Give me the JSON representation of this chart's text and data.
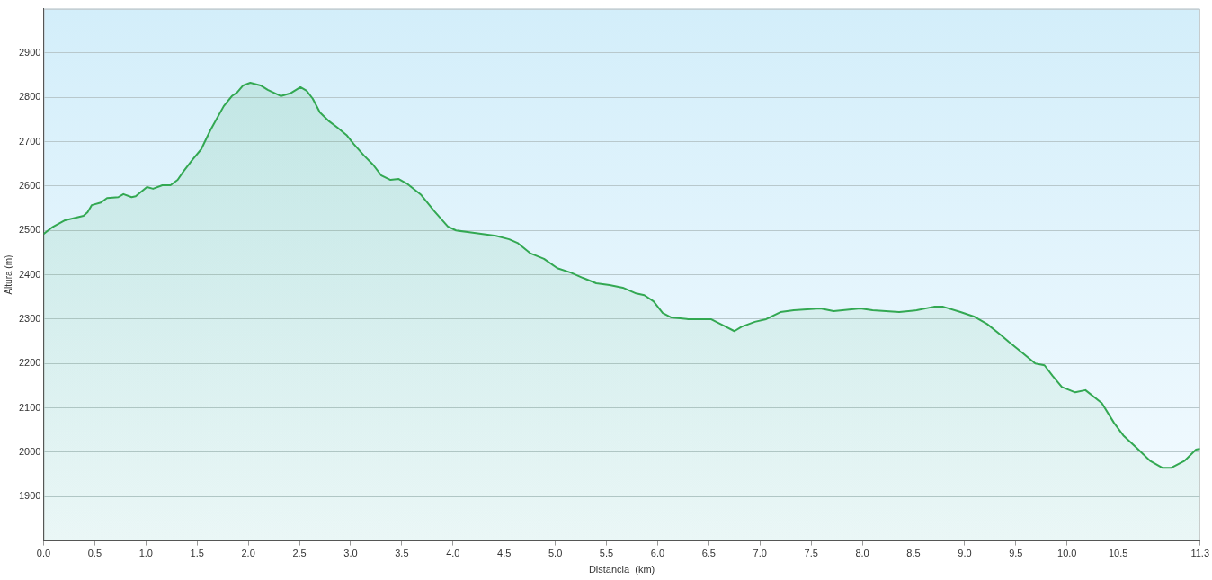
{
  "chart_data": {
    "type": "area",
    "xlabel": "Distancia  (km)",
    "ylabel": "Altura (m)",
    "xlim": [
      0,
      11.3
    ],
    "ylim": [
      1800,
      3000
    ],
    "xticks": [
      {
        "value": 0,
        "label": "0.0"
      },
      {
        "value": 0.5,
        "label": "0.5"
      },
      {
        "value": 1,
        "label": "1.0"
      },
      {
        "value": 1.5,
        "label": "1.5"
      },
      {
        "value": 2,
        "label": "2.0"
      },
      {
        "value": 2.5,
        "label": "2.5"
      },
      {
        "value": 3,
        "label": "3.0"
      },
      {
        "value": 3.5,
        "label": "3.5"
      },
      {
        "value": 4,
        "label": "4.0"
      },
      {
        "value": 4.5,
        "label": "4.5"
      },
      {
        "value": 5,
        "label": "5.0"
      },
      {
        "value": 5.5,
        "label": "5.5"
      },
      {
        "value": 6,
        "label": "6.0"
      },
      {
        "value": 6.5,
        "label": "6.5"
      },
      {
        "value": 7,
        "label": "7.0"
      },
      {
        "value": 7.5,
        "label": "7.5"
      },
      {
        "value": 8,
        "label": "8.0"
      },
      {
        "value": 8.5,
        "label": "8.5"
      },
      {
        "value": 9,
        "label": "9.0"
      },
      {
        "value": 9.5,
        "label": "9.5"
      },
      {
        "value": 10,
        "label": "10.0"
      },
      {
        "value": 10.5,
        "label": "10.5"
      },
      {
        "value": 11.3,
        "label": "11.3"
      }
    ],
    "yticks": [
      1900,
      2000,
      2100,
      2200,
      2300,
      2400,
      2500,
      2600,
      2700,
      2800,
      2900
    ],
    "grid": "y",
    "legend": false,
    "marker": "none",
    "line_style": "solid",
    "x": [
      0,
      0.09,
      0.21,
      0.39,
      0.43,
      0.47,
      0.56,
      0.62,
      0.73,
      0.78,
      0.86,
      0.9,
      1.01,
      1.07,
      1.16,
      1.24,
      1.31,
      1.37,
      1.46,
      1.54,
      1.63,
      1.76,
      1.84,
      1.89,
      1.95,
      2.02,
      2.12,
      2.19,
      2.32,
      2.41,
      2.51,
      2.57,
      2.63,
      2.7,
      2.79,
      2.87,
      2.96,
      3.03,
      3.13,
      3.22,
      3.3,
      3.39,
      3.47,
      3.56,
      3.69,
      3.82,
      3.95,
      4.03,
      4.16,
      4.29,
      4.42,
      4.55,
      4.63,
      4.76,
      4.89,
      5.02,
      5.15,
      5.27,
      5.4,
      5.53,
      5.66,
      5.79,
      5.87,
      5.96,
      6.05,
      6.13,
      6.3,
      6.52,
      6.65,
      6.75,
      6.82,
      6.95,
      7.06,
      7.2,
      7.33,
      7.59,
      7.72,
      7.98,
      8.1,
      8.36,
      8.53,
      8.7,
      8.79,
      8.96,
      9.09,
      9.22,
      9.35,
      9.43,
      9.56,
      9.69,
      9.78,
      9.86,
      9.95,
      10.08,
      10.18,
      10.34,
      10.46,
      10.55,
      10.68,
      10.81,
      10.93,
      11.02,
      11.15,
      11.26,
      11.3
    ],
    "series": [
      {
        "color": "#33a852",
        "values": [
          2492,
          2508,
          2523,
          2533,
          2541,
          2557,
          2563,
          2573,
          2575,
          2582,
          2575,
          2577,
          2598,
          2594,
          2602,
          2602,
          2614,
          2634,
          2661,
          2683,
          2726,
          2780,
          2803,
          2811,
          2827,
          2833,
          2827,
          2817,
          2803,
          2809,
          2823,
          2815,
          2797,
          2766,
          2746,
          2732,
          2715,
          2695,
          2669,
          2648,
          2624,
          2614,
          2616,
          2604,
          2580,
          2543,
          2509,
          2500,
          2496,
          2492,
          2488,
          2480,
          2472,
          2448,
          2436,
          2415,
          2405,
          2393,
          2381,
          2377,
          2371,
          2358,
          2354,
          2340,
          2314,
          2304,
          2300,
          2300,
          2285,
          2273,
          2283,
          2294,
          2300,
          2316,
          2320,
          2324,
          2318,
          2324,
          2320,
          2316,
          2320,
          2328,
          2328,
          2316,
          2306,
          2289,
          2265,
          2249,
          2225,
          2200,
          2196,
          2172,
          2147,
          2135,
          2140,
          2111,
          2066,
          2038,
          2010,
          1981,
          1965,
          1965,
          1981,
          2006,
          2008
        ]
      }
    ]
  }
}
